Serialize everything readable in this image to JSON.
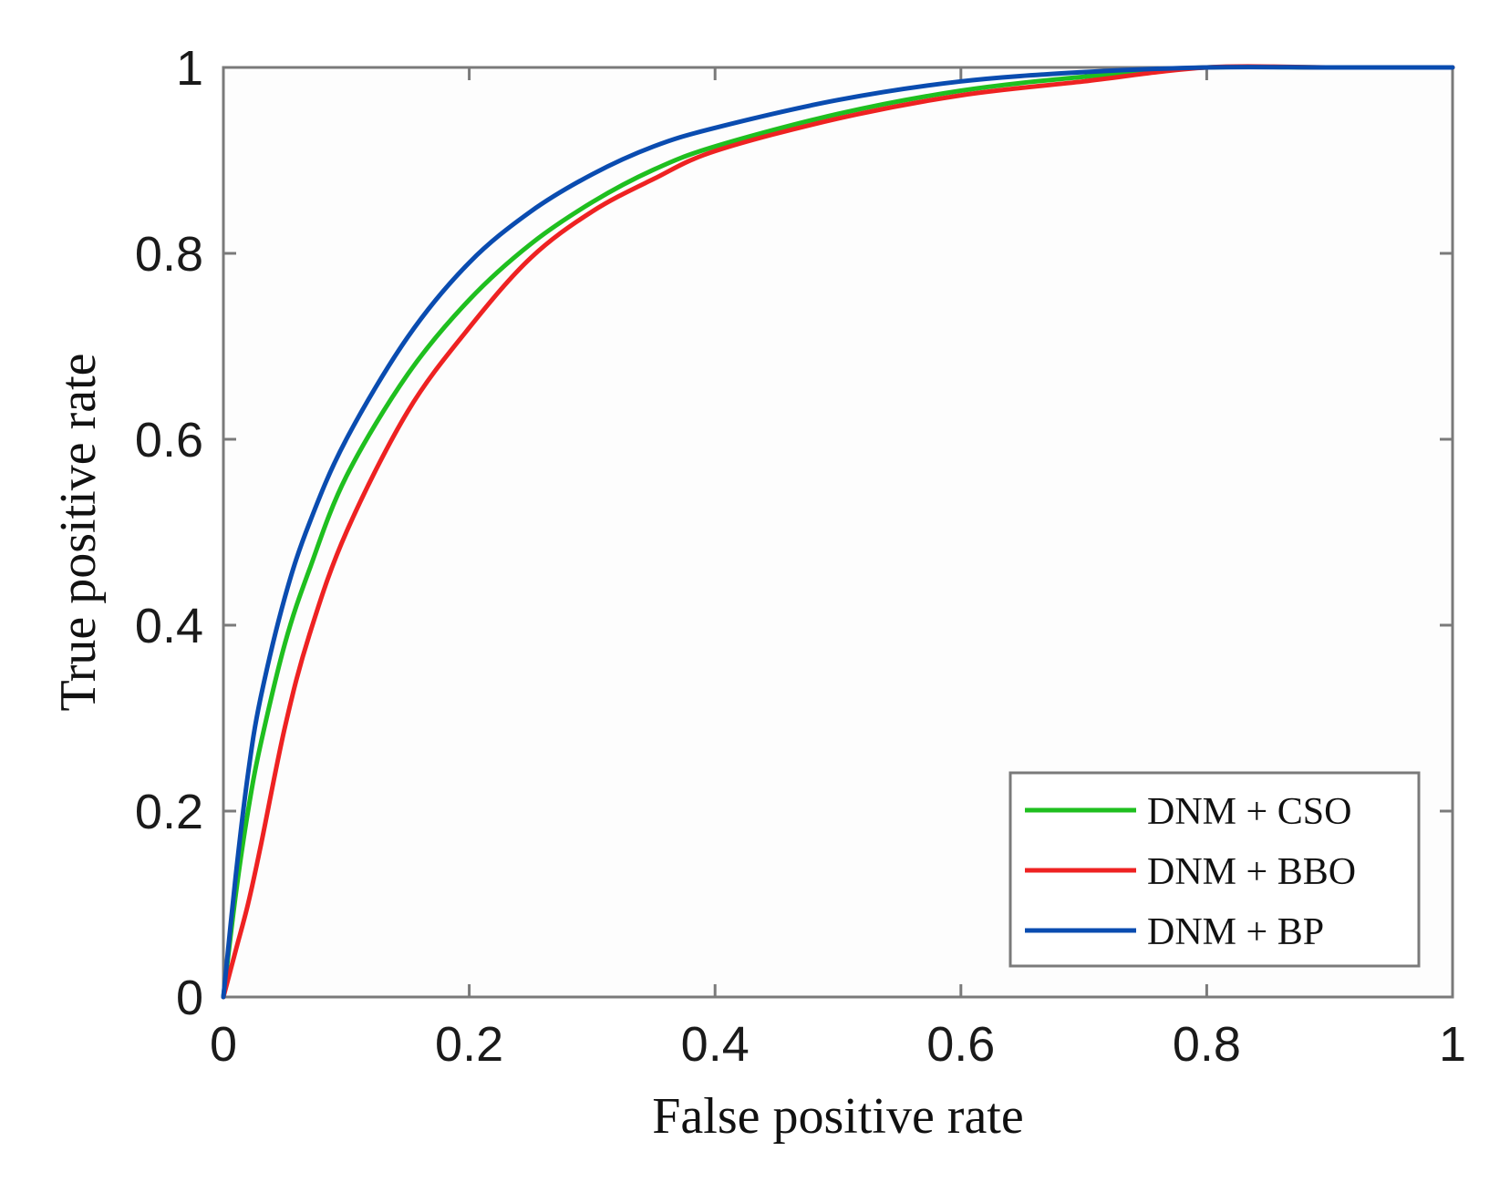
{
  "chart_data": {
    "type": "line",
    "title": "",
    "xlabel": "False positive rate",
    "ylabel": "True positive rate",
    "xlim": [
      0,
      1
    ],
    "ylim": [
      0,
      1
    ],
    "x_ticks": [
      0,
      0.2,
      0.4,
      0.6,
      0.8,
      1
    ],
    "x_tick_labels": [
      "0",
      "0.2",
      "0.4",
      "0.6",
      "0.8",
      "1"
    ],
    "y_ticks": [
      0,
      0.2,
      0.4,
      0.6,
      0.8,
      1
    ],
    "y_tick_labels": [
      "0",
      "0.2",
      "0.4",
      "0.6",
      "0.8",
      "1"
    ],
    "grid": false,
    "legend_position": "bottom-right",
    "series": [
      {
        "name": "DNM + CSO",
        "color": "#1fbf1f",
        "x": [
          0,
          0.01,
          0.02,
          0.03,
          0.05,
          0.07,
          0.1,
          0.15,
          0.2,
          0.25,
          0.3,
          0.35,
          0.4,
          0.5,
          0.6,
          0.7,
          0.8,
          0.9,
          1.0
        ],
        "y": [
          0,
          0.11,
          0.2,
          0.27,
          0.38,
          0.46,
          0.56,
          0.67,
          0.75,
          0.81,
          0.855,
          0.89,
          0.915,
          0.95,
          0.975,
          0.99,
          1.0,
          1.0,
          1.0
        ]
      },
      {
        "name": "DNM + BBO",
        "color": "#ee2222",
        "x": [
          0,
          0.01,
          0.02,
          0.03,
          0.05,
          0.07,
          0.1,
          0.15,
          0.2,
          0.25,
          0.3,
          0.35,
          0.4,
          0.5,
          0.6,
          0.7,
          0.8,
          0.9,
          1.0
        ],
        "y": [
          0,
          0.05,
          0.1,
          0.16,
          0.29,
          0.39,
          0.5,
          0.63,
          0.72,
          0.795,
          0.845,
          0.88,
          0.91,
          0.945,
          0.97,
          0.985,
          1.0,
          1.0,
          1.0
        ]
      },
      {
        "name": "DNM + BP",
        "color": "#0a4cb0",
        "x": [
          0,
          0.01,
          0.02,
          0.03,
          0.05,
          0.07,
          0.1,
          0.15,
          0.2,
          0.25,
          0.3,
          0.35,
          0.4,
          0.5,
          0.6,
          0.7,
          0.8,
          0.9,
          1.0
        ],
        "y": [
          0,
          0.13,
          0.24,
          0.32,
          0.43,
          0.51,
          0.6,
          0.71,
          0.79,
          0.845,
          0.885,
          0.915,
          0.935,
          0.965,
          0.985,
          0.995,
          1.0,
          1.0,
          1.0
        ]
      }
    ]
  }
}
